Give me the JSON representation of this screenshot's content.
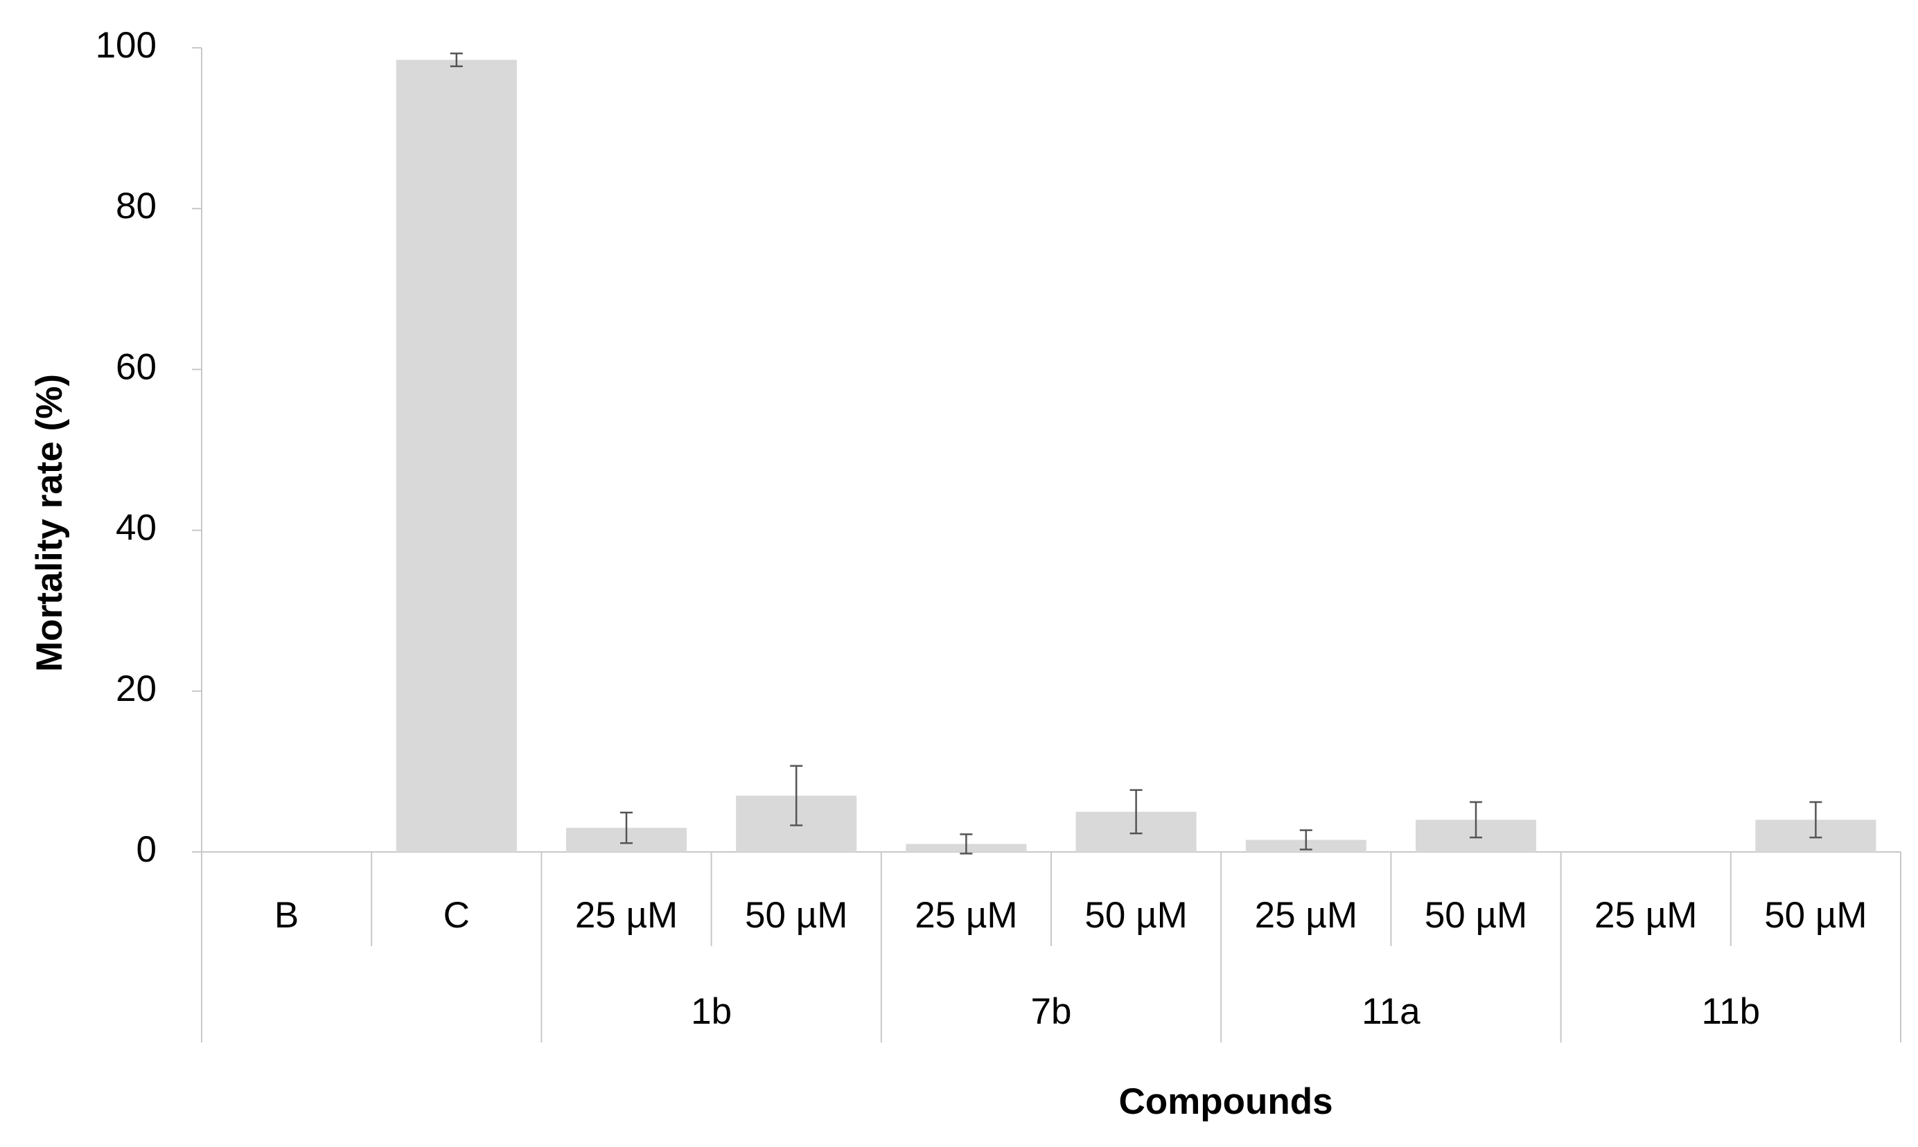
{
  "chart_data": {
    "type": "bar",
    "x_label": "Compounds",
    "y_label": "Mortality rate (%)",
    "groups": [
      {
        "name": null,
        "categories": [
          "B"
        ]
      },
      {
        "name": null,
        "categories": [
          "C"
        ]
      },
      {
        "name": "1b",
        "categories": [
          "25 µM",
          "50 µM"
        ]
      },
      {
        "name": "7b",
        "categories": [
          "25 µM",
          "50 µM"
        ]
      },
      {
        "name": "11a",
        "categories": [
          "25 µM",
          "50 µM"
        ]
      },
      {
        "name": "11b",
        "categories": [
          "25 µM",
          "50 µM"
        ]
      }
    ],
    "values": [
      0,
      98.5,
      3,
      7,
      1,
      5,
      1.5,
      4,
      0,
      4
    ],
    "errors": [
      null,
      0.8,
      1.9,
      3.7,
      1.2,
      2.7,
      1.2,
      2.2,
      null,
      2.2
    ],
    "color": "#d9d9d9",
    "error_color": "#555555",
    "ylim": [
      0,
      100
    ],
    "yticks": [
      0,
      20,
      40,
      60,
      80,
      100
    ],
    "grid": false
  }
}
